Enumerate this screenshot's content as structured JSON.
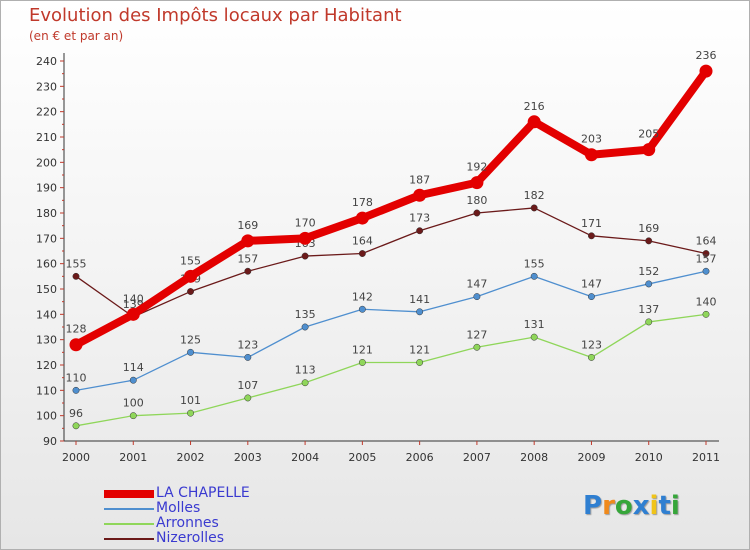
{
  "title": "Evolution des Impôts locaux par Habitant",
  "subtitle": "(en € et par an)",
  "brand": {
    "text": "Proxiti",
    "letters": [
      {
        "ch": "P",
        "color": "#2f7fd1"
      },
      {
        "ch": "r",
        "color": "#f08a1c"
      },
      {
        "ch": "o",
        "color": "#36a63a"
      },
      {
        "ch": "x",
        "color": "#2f7fd1"
      },
      {
        "ch": "i",
        "color": "#f0c419"
      },
      {
        "ch": "t",
        "color": "#2f7fd1"
      },
      {
        "ch": "i",
        "color": "#36a63a"
      }
    ]
  },
  "chart_data": {
    "type": "line",
    "title": "Evolution des Impôts locaux par Habitant",
    "subtitle": "(en € et par an)",
    "xlabel": "",
    "ylabel": "",
    "categories": [
      "2000",
      "2001",
      "2002",
      "2003",
      "2004",
      "2005",
      "2006",
      "2007",
      "2008",
      "2009",
      "2010",
      "2011"
    ],
    "ylim": [
      90,
      240
    ],
    "yticks": [
      90,
      100,
      110,
      120,
      130,
      140,
      150,
      160,
      170,
      180,
      190,
      200,
      210,
      220,
      230,
      240
    ],
    "grid": true,
    "legend_position": "bottom-left",
    "series": [
      {
        "name": "Nizerolles",
        "color": "#6b1a1a",
        "values": [
          155,
          139,
          149,
          157,
          163,
          164,
          173,
          180,
          182,
          171,
          169,
          164
        ]
      },
      {
        "name": "Arronnes",
        "color": "#8fd65a",
        "values": [
          96,
          100,
          101,
          107,
          113,
          121,
          121,
          127,
          131,
          123,
          137,
          140
        ]
      },
      {
        "name": "Molles",
        "color": "#4f8fcf",
        "values": [
          110,
          114,
          125,
          123,
          135,
          142,
          141,
          147,
          155,
          147,
          152,
          157
        ]
      },
      {
        "name": "LA CHAPELLE",
        "color": "#e30000",
        "values": [
          128,
          140,
          155,
          169,
          170,
          178,
          187,
          192,
          216,
          203,
          205,
          236
        ]
      }
    ],
    "legend": [
      "LA CHAPELLE",
      "Molles",
      "Arronnes",
      "Nizerolles"
    ]
  }
}
